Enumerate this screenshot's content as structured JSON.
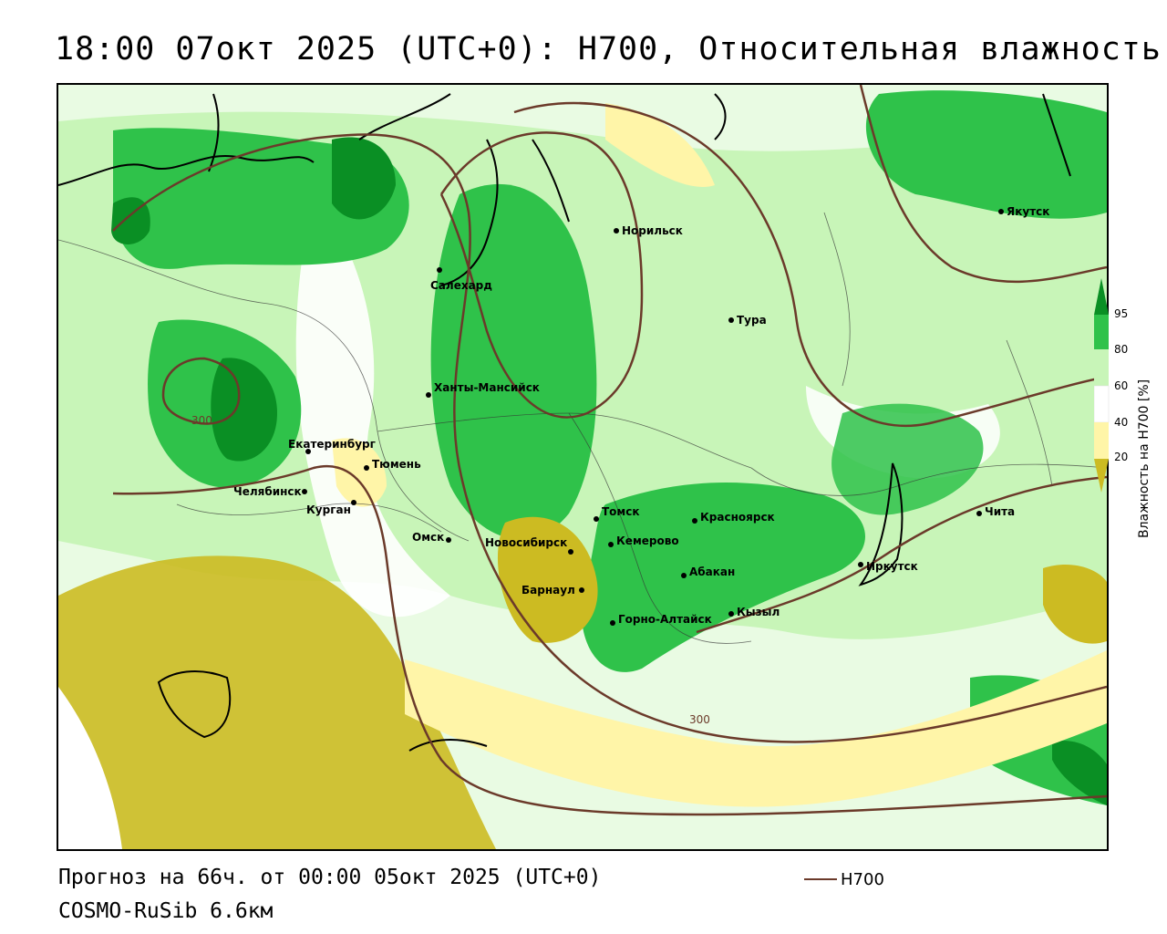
{
  "header": {
    "title": "18:00 07окт 2025 (UTC+0): H700, Относительная влажность"
  },
  "footer": {
    "forecast": "Прогноз на 66ч. от 00:00 05окт 2025 (UTC+0)",
    "model": "COSMO-RuSib 6.6км"
  },
  "legend": {
    "line_label": "H700",
    "line_color": "#6b3a2a"
  },
  "colorbar": {
    "title": "Влажность на H700 [%]",
    "ticks": [
      "95",
      "80",
      "60",
      "40",
      "20"
    ],
    "colors": {
      "very_dry": "#ccbb22",
      "dry": "#fff5a8",
      "neutral": "#ffffff",
      "moist": "#c8f5b8",
      "wet": "#2fc24a",
      "very_wet": "#0a8f24"
    }
  },
  "map": {
    "cities": [
      "Якутск",
      "Норильск",
      "Салехард",
      "Тура",
      "Ханты-Мансийск",
      "Екатеринбург",
      "Тюмень",
      "Челябинск",
      "Курган",
      "Омск",
      "Томск",
      "Красноярск",
      "Новосибирск",
      "Кемерово",
      "Барнаул",
      "Абакан",
      "Иркутск",
      "Чита",
      "Горно-Алтайск",
      "Кызыл"
    ],
    "contour_labels": [
      "300",
      "300"
    ]
  }
}
